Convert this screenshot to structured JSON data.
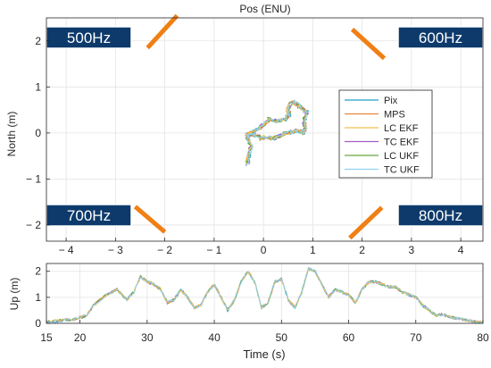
{
  "colors": {
    "Pix": "#1f9fc9",
    "MPS": "#e8843a",
    "LC EKF": "#f2c14e",
    "TC EKF": "#a45fc4",
    "LC UKF": "#6aa844",
    "TC UKF": "#8fd3f0",
    "band": "#f07f14",
    "callout_bg": "#0d3a6b",
    "callout_text": "#ffffff"
  },
  "chart_data": [
    {
      "type": "line",
      "title": "Pos (ENU)",
      "xlabel": "",
      "ylabel": "North (m)",
      "xlim": [
        -4.4,
        4.45
      ],
      "ylim": [
        -2.35,
        2.5
      ],
      "x_ticks": [
        -4,
        -3,
        -2,
        -1,
        0,
        1,
        2,
        3,
        4
      ],
      "x_tick_labels": [
        "− 4",
        "− 3",
        "− 2",
        "− 1",
        "0",
        "1",
        "2",
        "3",
        "4"
      ],
      "y_ticks": [
        2,
        1,
        0,
        -1,
        -2
      ],
      "y_tick_labels": [
        "2",
        "1",
        "0",
        "− 1",
        "− 2"
      ],
      "grid": true,
      "legend": {
        "placement": "right",
        "entries": [
          "Pix",
          "MPS",
          "LC EKF",
          "TC EKF",
          "LC UKF",
          "TC UKF"
        ]
      },
      "series": [
        {
          "name": "Pix",
          "points": [
            [
              -0.33,
              -0.68
            ],
            [
              -0.3,
              -0.5
            ],
            [
              -0.25,
              -0.3
            ],
            [
              -0.32,
              -0.12
            ],
            [
              -0.3,
              -0.02
            ],
            [
              -0.15,
              -0.05
            ],
            [
              -0.05,
              -0.12
            ],
            [
              0.05,
              -0.08
            ],
            [
              0.18,
              -0.12
            ],
            [
              0.3,
              -0.08
            ],
            [
              0.4,
              -0.02
            ],
            [
              0.55,
              0.02
            ],
            [
              0.7,
              0.05
            ],
            [
              0.8,
              0.0
            ],
            [
              0.86,
              0.1
            ],
            [
              0.82,
              0.25
            ],
            [
              0.9,
              0.45
            ],
            [
              0.8,
              0.5
            ],
            [
              0.7,
              0.6
            ],
            [
              0.6,
              0.68
            ],
            [
              0.5,
              0.55
            ],
            [
              0.52,
              0.4
            ],
            [
              0.42,
              0.3
            ],
            [
              0.28,
              0.25
            ],
            [
              0.12,
              0.3
            ],
            [
              0.02,
              0.2
            ],
            [
              -0.1,
              0.08
            ],
            [
              -0.25,
              0.0
            ],
            [
              -0.33,
              -0.05
            ],
            [
              -0.3,
              -0.15
            ]
          ]
        }
      ],
      "annotations": [
        {
          "label": "500Hz",
          "pointer": [
            [
              -2.35,
              1.85
            ],
            [
              -1.75,
              2.55
            ]
          ]
        },
        {
          "label": "600Hz",
          "pointer": [
            [
              1.8,
              2.25
            ],
            [
              2.45,
              1.62
            ]
          ]
        },
        {
          "label": "700Hz",
          "pointer": [
            [
              -2.6,
              -1.6
            ],
            [
              -2.0,
              -2.15
            ]
          ]
        },
        {
          "label": "800Hz",
          "pointer": [
            [
              1.75,
              -2.28
            ],
            [
              2.4,
              -1.62
            ]
          ]
        }
      ]
    },
    {
      "type": "line",
      "title": "",
      "xlabel": "Time (s)",
      "ylabel": "Up (m)",
      "xlim": [
        15,
        80
      ],
      "ylim": [
        0,
        2.3
      ],
      "x_ticks": [
        15,
        20,
        30,
        40,
        50,
        60,
        70,
        80
      ],
      "x_tick_labels": [
        "15",
        "20",
        "30",
        "40",
        "50",
        "60",
        "70",
        "80"
      ],
      "y_ticks": [
        0,
        1,
        2
      ],
      "y_tick_labels": [
        "0",
        "1",
        "2"
      ],
      "grid": true,
      "series": [
        {
          "name": "Pix",
          "points": [
            [
              15,
              0.05
            ],
            [
              17,
              0.1
            ],
            [
              19,
              0.15
            ],
            [
              21,
              0.3
            ],
            [
              22,
              0.7
            ],
            [
              24,
              1.1
            ],
            [
              25.5,
              1.3
            ],
            [
              27,
              0.9
            ],
            [
              28,
              1.2
            ],
            [
              29,
              1.8
            ],
            [
              30,
              1.6
            ],
            [
              31,
              1.5
            ],
            [
              32,
              1.3
            ],
            [
              33,
              0.8
            ],
            [
              34,
              0.9
            ],
            [
              35,
              1.3
            ],
            [
              36,
              1.0
            ],
            [
              37,
              0.6
            ],
            [
              38,
              0.7
            ],
            [
              39,
              1.2
            ],
            [
              40,
              1.5
            ],
            [
              41,
              1.0
            ],
            [
              42,
              0.5
            ],
            [
              43,
              0.9
            ],
            [
              44,
              1.6
            ],
            [
              45,
              2.0
            ],
            [
              46,
              1.6
            ],
            [
              47,
              0.6
            ],
            [
              48,
              0.8
            ],
            [
              49,
              1.6
            ],
            [
              50,
              1.7
            ],
            [
              51,
              0.9
            ],
            [
              52,
              0.6
            ],
            [
              53,
              1.2
            ],
            [
              54,
              2.1
            ],
            [
              55,
              2.0
            ],
            [
              56,
              1.5
            ],
            [
              57,
              1.0
            ],
            [
              58,
              1.3
            ],
            [
              59,
              1.2
            ],
            [
              60,
              1.1
            ],
            [
              61,
              0.8
            ],
            [
              62,
              1.3
            ],
            [
              63,
              1.6
            ],
            [
              64,
              1.6
            ],
            [
              65,
              1.5
            ],
            [
              66,
              1.4
            ],
            [
              67,
              1.4
            ],
            [
              68,
              1.2
            ],
            [
              69,
              1.1
            ],
            [
              70,
              1.0
            ],
            [
              71,
              0.7
            ],
            [
              72,
              0.5
            ],
            [
              73,
              0.3
            ],
            [
              74,
              0.35
            ],
            [
              75,
              0.25
            ],
            [
              76,
              0.2
            ],
            [
              77,
              0.15
            ],
            [
              78,
              0.1
            ],
            [
              79,
              0.05
            ],
            [
              80,
              0.05
            ]
          ]
        }
      ]
    }
  ]
}
